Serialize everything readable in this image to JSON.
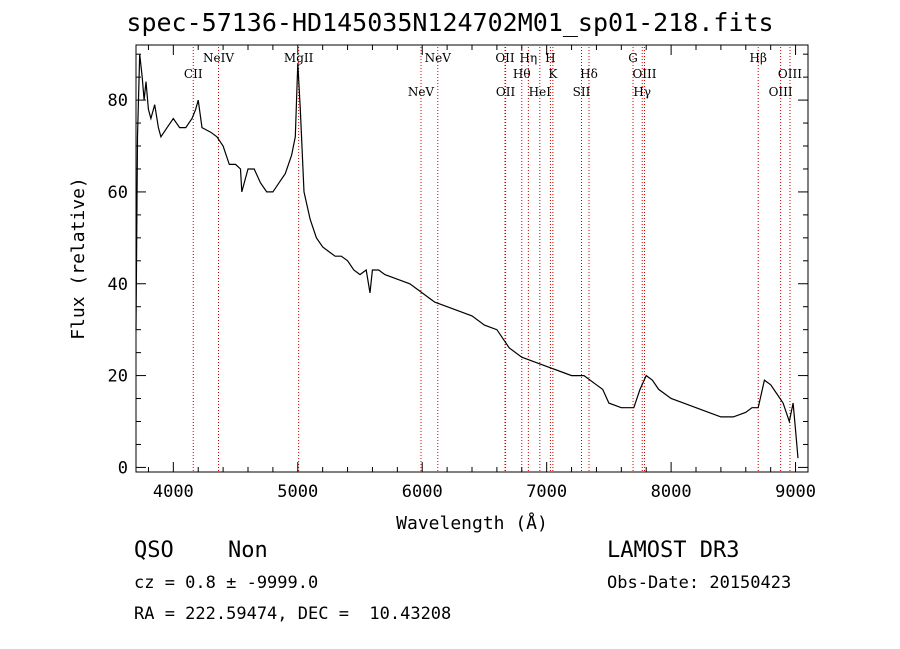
{
  "title": "spec-57136-HD145035N124702M01_sp01-218.fits",
  "footer": {
    "class_label": "QSO",
    "subclass_label": "Non",
    "cz_text": "cz = 0.8 ± -9999.0",
    "radec_text": "RA = 222.59474, DEC =  10.43208",
    "survey": "LAMOST DR3",
    "obsdate_text": "Obs-Date: 20150423"
  },
  "chart_data": {
    "type": "line",
    "title": "spec-57136-HD145035N124702M01_sp01-218.fits",
    "xlabel": "Wavelength (Å)",
    "ylabel": "Flux (relative)",
    "xlim": [
      3700,
      9100
    ],
    "ylim": [
      -1,
      92
    ],
    "x_ticks": [
      4000,
      5000,
      6000,
      7000,
      8000,
      9000
    ],
    "y_ticks": [
      0,
      20,
      40,
      60,
      80
    ],
    "line_color": "#000000",
    "marker_color": "#cc0000",
    "series": [
      {
        "x": [
          3700,
          3712,
          3730,
          3750,
          3765,
          3780,
          3800,
          3820,
          3850,
          3880,
          3900,
          3950,
          4000,
          4050,
          4100,
          4150,
          4180,
          4200,
          4230,
          4300,
          4350,
          4400,
          4450,
          4500,
          4540,
          4550,
          4600,
          4650,
          4700,
          4750,
          4800,
          4850,
          4900,
          4950,
          4980,
          5000,
          5020,
          5050,
          5100,
          5150,
          5200,
          5250,
          5300,
          5350,
          5400,
          5450,
          5500,
          5550,
          5580,
          5600,
          5650,
          5700,
          5800,
          5900,
          6000,
          6050,
          6100,
          6200,
          6300,
          6400,
          6500,
          6600,
          6700,
          6800,
          6900,
          7000,
          7100,
          7200,
          7300,
          7350,
          7400,
          7450,
          7500,
          7600,
          7700,
          7750,
          7800,
          7850,
          7900,
          8000,
          8100,
          8200,
          8300,
          8400,
          8500,
          8600,
          8650,
          8700,
          8750,
          8800,
          8850,
          8900,
          8950,
          8980,
          9000,
          9020
        ],
        "y": [
          30,
          72,
          90,
          85,
          80,
          84,
          78,
          76,
          79,
          74,
          72,
          74,
          76,
          74,
          74,
          76,
          78,
          80,
          74,
          73,
          72,
          70,
          66,
          66,
          65,
          60,
          65,
          65,
          62,
          60,
          60,
          62,
          64,
          68,
          72,
          88,
          78,
          60,
          54,
          50,
          48,
          47,
          46,
          46,
          45,
          43,
          42,
          43,
          38,
          43,
          43,
          42,
          41,
          40,
          38,
          37,
          36,
          35,
          34,
          33,
          31,
          30,
          26,
          24,
          23,
          22,
          21,
          20,
          20,
          19,
          18,
          17,
          14,
          13,
          13,
          17,
          20,
          19,
          17,
          15,
          14,
          13,
          12,
          11,
          11,
          12,
          13,
          13,
          19,
          18,
          16,
          14,
          10,
          14,
          8,
          2
        ]
      }
    ],
    "lines_top": [
      {
        "label": "NeIV",
        "x": 4363
      },
      {
        "label": "MgII",
        "x": 5007
      },
      {
        "label": "NeV",
        "x": 6125
      },
      {
        "label": "OII",
        "x": 6665
      },
      {
        "label": "Hη",
        "x": 6853
      },
      {
        "label": "H",
        "x": 7030
      },
      {
        "label": "G",
        "x": 7694
      },
      {
        "label": "Hβ",
        "x": 8700
      }
    ],
    "lines_mid": [
      {
        "label": "CII",
        "x": 4160
      },
      {
        "label": "Hθ",
        "x": 6800
      },
      {
        "label": "K",
        "x": 7050
      },
      {
        "label": "Hδ",
        "x": 7340
      },
      {
        "label": "OIII",
        "x": 7786
      },
      {
        "label": "OIII",
        "x": 8955
      }
    ],
    "lines_low": [
      {
        "label": "NeV",
        "x": 5990
      },
      {
        "label": "OII",
        "x": 6670
      },
      {
        "label": "HeI",
        "x": 6945
      },
      {
        "label": "SII",
        "x": 7280
      },
      {
        "label": "Hγ",
        "x": 7768
      },
      {
        "label": "OIII",
        "x": 8880
      }
    ]
  }
}
